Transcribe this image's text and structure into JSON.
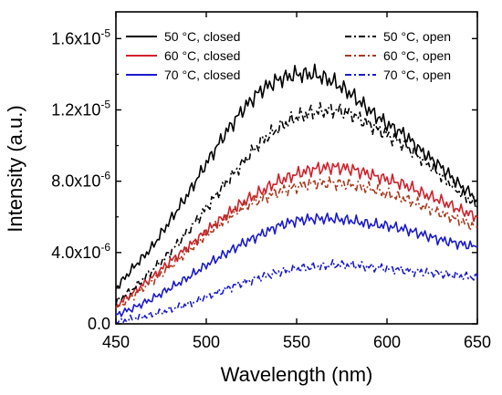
{
  "chart_data": {
    "type": "line",
    "xlabel": "Wavelength (nm)",
    "ylabel": "Intensity (a.u.)",
    "xlim": [
      450,
      650
    ],
    "ylim": [
      0,
      1.75e-05
    ],
    "x_ticks": [
      450,
      500,
      550,
      600,
      650
    ],
    "x_tick_labels": [
      "450",
      "500",
      "550",
      "600",
      "650"
    ],
    "y_ticks": [
      0,
      4e-06,
      8e-06,
      1.2e-05,
      1.6e-05
    ],
    "y_tick_labels": [
      "0.0",
      "4.0x10",
      "8.0x10",
      "1.2x10",
      "1.6x10"
    ],
    "y_tick_exponents": [
      "",
      "-6",
      "-6",
      "-5",
      "-5"
    ],
    "grid": false,
    "legend_left_placement": "top-left",
    "legend_right_placement": "top-right",
    "x": [
      450,
      460,
      470,
      480,
      490,
      500,
      510,
      520,
      530,
      540,
      550,
      560,
      570,
      580,
      590,
      600,
      610,
      620,
      630,
      640,
      650
    ],
    "series": [
      {
        "name": "50 °C, closed",
        "color": "#000000",
        "dash": "solid",
        "values": [
          2e-06,
          3.2e-06,
          4.3e-06,
          5.8e-06,
          7.3e-06,
          9e-06,
          1.06e-05,
          1.2e-05,
          1.31e-05,
          1.37e-05,
          1.4e-05,
          1.4e-05,
          1.36e-05,
          1.29e-05,
          1.2e-05,
          1.12e-05,
          1.06e-05,
          9.6e-06,
          8.8e-06,
          7.8e-06,
          7e-06
        ]
      },
      {
        "name": "60 °C, closed",
        "color": "#d0202a",
        "dash": "solid",
        "values": [
          1e-06,
          1.8e-06,
          2.6e-06,
          3.5e-06,
          4.3e-06,
          5.2e-06,
          6e-06,
          6.8e-06,
          7.4e-06,
          8e-06,
          8.4e-06,
          8.7e-06,
          8.8e-06,
          8.7e-06,
          8.4e-06,
          8.1e-06,
          7.8e-06,
          7.3e-06,
          6.9e-06,
          6.4e-06,
          6e-06
        ]
      },
      {
        "name": "70 °C, closed",
        "color": "#1a1acc",
        "dash": "solid",
        "values": [
          5e-07,
          9e-07,
          1.4e-06,
          2e-06,
          2.6e-06,
          3.3e-06,
          3.9e-06,
          4.5e-06,
          5e-06,
          5.5e-06,
          5.8e-06,
          5.9e-06,
          5.9e-06,
          5.8e-06,
          5.6e-06,
          5.5e-06,
          5.3e-06,
          5e-06,
          4.7e-06,
          4.5e-06,
          4.3e-06
        ]
      },
      {
        "name": "50 °C, open",
        "color": "#000000",
        "dash": "dashdot",
        "values": [
          1.2e-06,
          2e-06,
          3e-06,
          4e-06,
          5.2e-06,
          6.5e-06,
          7.8e-06,
          9e-06,
          1.02e-05,
          1.1e-05,
          1.16e-05,
          1.19e-05,
          1.2e-05,
          1.18e-05,
          1.12e-05,
          1.06e-05,
          1e-05,
          9.2e-06,
          8.3e-06,
          7.4e-06,
          6.6e-06
        ]
      },
      {
        "name": "60 °C, open",
        "color": "#a83a1e",
        "dash": "dashdot",
        "values": [
          9e-07,
          1.6e-06,
          2.4e-06,
          3.2e-06,
          4.1e-06,
          5e-06,
          5.8e-06,
          6.5e-06,
          7e-06,
          7.4e-06,
          7.7e-06,
          7.9e-06,
          7.9e-06,
          7.8e-06,
          7.6e-06,
          7.3e-06,
          7e-06,
          6.6e-06,
          6.2e-06,
          5.8e-06,
          5.4e-06
        ]
      },
      {
        "name": "70 °C, open",
        "color": "#1a1acc",
        "dash": "dashdot",
        "values": [
          1e-07,
          3e-07,
          5e-07,
          8e-07,
          1.1e-06,
          1.5e-06,
          1.9e-06,
          2.3e-06,
          2.6e-06,
          2.9e-06,
          3.1e-06,
          3.2e-06,
          3.3e-06,
          3.3e-06,
          3.2e-06,
          3.1e-06,
          3e-06,
          2.9e-06,
          2.8e-06,
          2.7e-06,
          2.6e-06
        ]
      }
    ]
  }
}
